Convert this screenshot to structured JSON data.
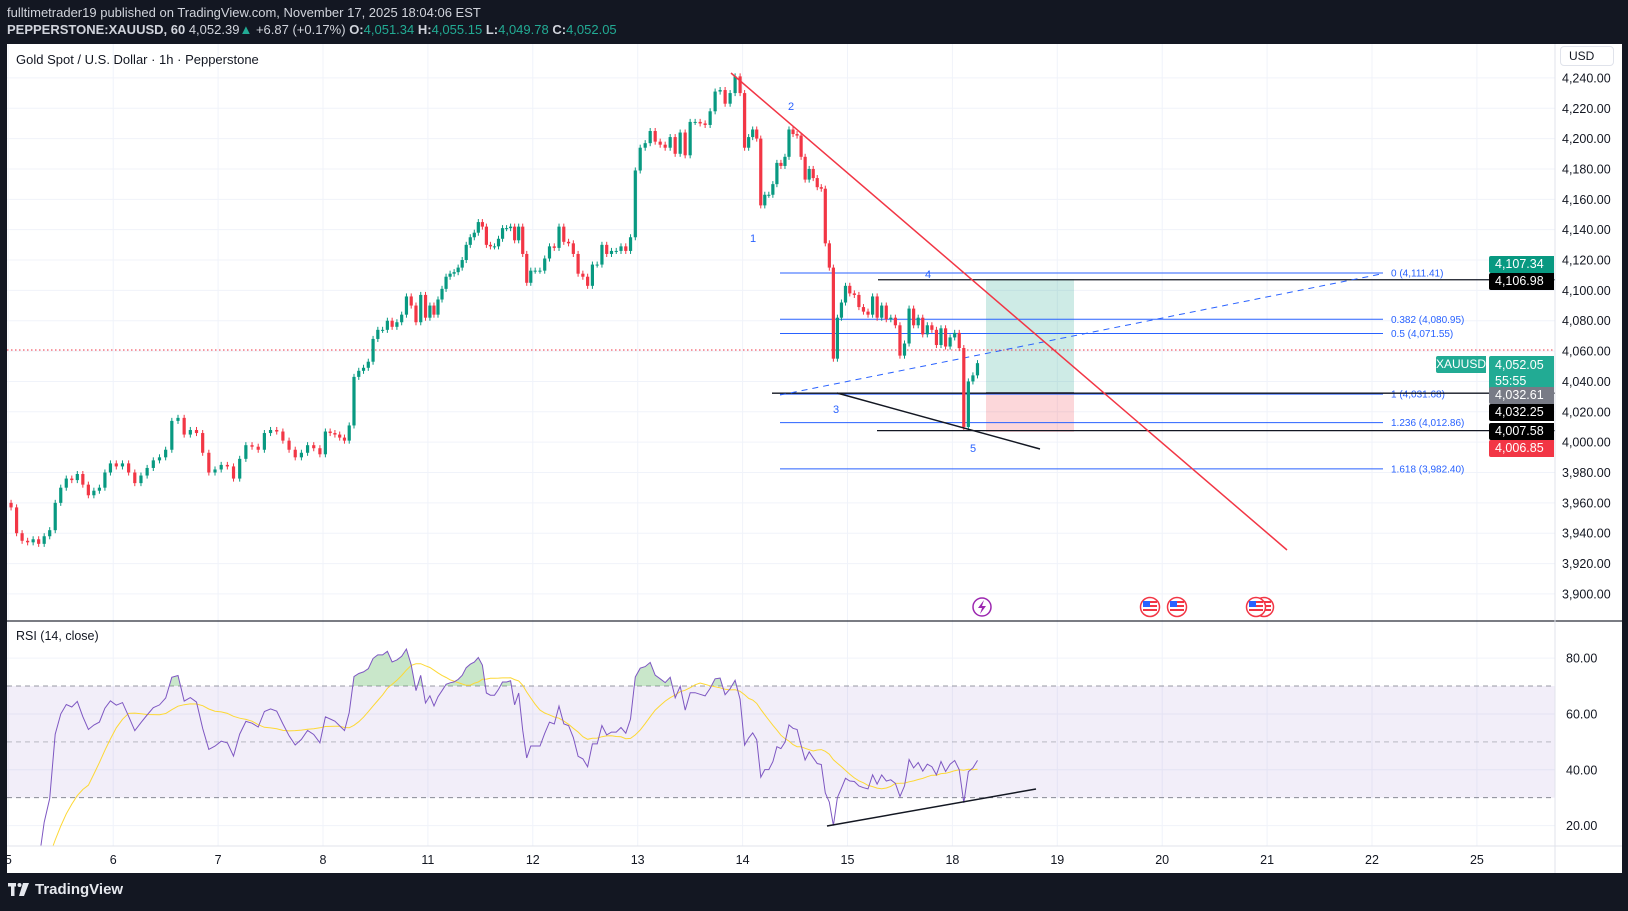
{
  "header": {
    "publisher_line": "fulltimetrader19 published on TradingView.com, November 17, 2025 18:04:06 EST",
    "symbol": "PEPPERSTONE:XAUUSD, 60",
    "last": "4,052.39",
    "change": "+6.87 (+0.17%)",
    "o_label": "O:",
    "o": "4,051.34",
    "h_label": "H:",
    "h": "4,055.15",
    "l_label": "L:",
    "l": "4,049.78",
    "c_label": "C:",
    "c": "4,052.05"
  },
  "chart": {
    "title": "Gold Spot / U.S. Dollar · 1h · Pepperstone",
    "currency": "USD",
    "symbol_tag": "XAUUSD",
    "countdown": "55:55",
    "price_tags": [
      {
        "text": "4,107.34",
        "color": "#089981"
      },
      {
        "text": "4,106.98",
        "color": "#000000"
      },
      {
        "text": "4,052.05",
        "color": "#22ab94"
      },
      {
        "text": "4,032.61",
        "color": "#787b86"
      },
      {
        "text": "4,032.25",
        "color": "#000000"
      },
      {
        "text": "4,007.58",
        "color": "#000000"
      },
      {
        "text": "4,006.85",
        "color": "#f23645"
      }
    ],
    "wave_labels": [
      "1",
      "2",
      "3",
      "4",
      "5"
    ],
    "fib_labels": [
      "0 (4,111.41)",
      "0.382 (4,080.95)",
      "0.5 (4,071.55)",
      "1 (4,031.68)",
      "1.236 (4,012.86)",
      "1.618 (3,982.40)"
    ],
    "fib_levels": [
      4111.41,
      4080.95,
      4071.55,
      4031.68,
      4012.86,
      3982.4
    ],
    "horizontal_lines": [
      4106.98,
      4032.25,
      4007.58
    ],
    "long_position": {
      "entry": 4032.61,
      "target": 4107.34,
      "stop": 4006.85
    },
    "last_price": 4052.05,
    "events": [
      "lightning-icon",
      "us-flag-icon",
      "us-flag-icon",
      "us-flag-icon",
      "us-flag-icon"
    ],
    "colors": {
      "up": "#089981",
      "down": "#f23645",
      "fib": "#2962ff",
      "trendline": "#f23645",
      "rsi": "#7e57c2",
      "rsi_ma": "#fdd835"
    }
  },
  "chart_data": {
    "type": "candlestick",
    "interval": "1h",
    "ylim": [
      3890,
      4250
    ],
    "y_ticks": [
      "4,240.00",
      "4,220.00",
      "4,200.00",
      "4,180.00",
      "4,160.00",
      "4,140.00",
      "4,120.00",
      "4,100.00",
      "4,080.00",
      "4,060.00",
      "4,040.00",
      "4,020.00",
      "4,000.00",
      "3,980.00",
      "3,960.00",
      "3,940.00",
      "3,920.00",
      "3,900.00"
    ],
    "y_tick_values": [
      4240,
      4220,
      4200,
      4180,
      4160,
      4140,
      4120,
      4100,
      4080,
      4060,
      4040,
      4020,
      4000,
      3980,
      3960,
      3940,
      3920,
      3900
    ],
    "x_ticks": [
      "5",
      "6",
      "7",
      "8",
      "11",
      "12",
      "13",
      "14",
      "15",
      "18",
      "19",
      "20",
      "21",
      "22",
      "25"
    ],
    "sessions": [
      {
        "label": "5",
        "closes": [
          3957,
          3940,
          3935,
          3934,
          3936,
          3933,
          3938,
          3942,
          3960,
          3970,
          3976,
          3975,
          3979,
          3972,
          3965,
          3968,
          3970,
          3980,
          3986
        ]
      },
      {
        "label": "6",
        "closes": [
          3984,
          3986,
          3980,
          3973,
          3978,
          3983,
          3988,
          3990,
          3995,
          4014,
          4016,
          4005,
          4008,
          4006,
          3993,
          3980,
          3982
        ]
      },
      {
        "label": "7",
        "closes": [
          3985,
          3984,
          3976,
          3989,
          3998,
          3997,
          3995,
          4006,
          4008,
          4007,
          4001,
          3995,
          3990,
          3993,
          3998,
          3996,
          3992
        ]
      },
      {
        "label": "8",
        "closes": [
          4007,
          4006,
          4005,
          4003,
          4001,
          4011,
          4043,
          4047,
          4049,
          4053,
          4068,
          4074,
          4074,
          4080,
          4076,
          4079,
          4084,
          4096,
          4090,
          4079,
          4097,
          4082
        ]
      },
      {
        "label": "11",
        "closes": [
          4090,
          4084,
          4094,
          4101,
          4109,
          4111,
          4112,
          4115,
          4120,
          4130,
          4135,
          4138,
          4145,
          4142,
          4130,
          4129,
          4129,
          4134,
          4141,
          4141,
          4142,
          4133,
          4142,
          4124,
          4105,
          4113
        ]
      },
      {
        "label": "12",
        "closes": [
          4113,
          4113,
          4121,
          4129,
          4128,
          4142,
          4132,
          4131,
          4124,
          4111,
          4109,
          4103,
          4117,
          4117,
          4130,
          4124,
          4126,
          4126,
          4129,
          4126,
          4135,
          4179
        ]
      },
      {
        "label": "13",
        "closes": [
          4194,
          4197,
          4205,
          4198,
          4196,
          4194,
          4201,
          4190,
          4204,
          4189,
          4211,
          4211,
          4210,
          4209,
          4218,
          4231,
          4232,
          4223,
          4230,
          4241,
          4230
        ]
      },
      {
        "label": "14",
        "closes": [
          4194,
          4201,
          4206,
          4200,
          4156,
          4163,
          4163,
          4170,
          4184,
          4182,
          4188,
          4206,
          4203,
          4202,
          4188,
          4173,
          4180,
          4174,
          4168,
          4167,
          4131,
          4115,
          4055,
          4082,
          4092,
          4103
        ]
      },
      {
        "label": "15",
        "closes": [
          4098,
          4097,
          4089,
          4086,
          4084,
          4096,
          4082,
          4090,
          4081,
          4082,
          4077,
          4057,
          4065,
          4088,
          4077,
          4082,
          4071,
          4077,
          4074,
          4064,
          4075,
          4063,
          4069
        ]
      },
      {
        "label": "18",
        "closes": [
          4072,
          4062,
          4010,
          4040,
          4044,
          4052.05
        ]
      }
    ],
    "rsi": {
      "title": "RSI (14, close)",
      "period": 14,
      "ma_period": 14,
      "upper": 70,
      "middle": 50,
      "lower": 30,
      "ticks": [
        "80.00",
        "60.00",
        "40.00",
        "20.00"
      ],
      "tick_values": [
        80,
        60,
        40,
        20
      ]
    }
  },
  "branding": {
    "logo_text": "TradingView"
  }
}
